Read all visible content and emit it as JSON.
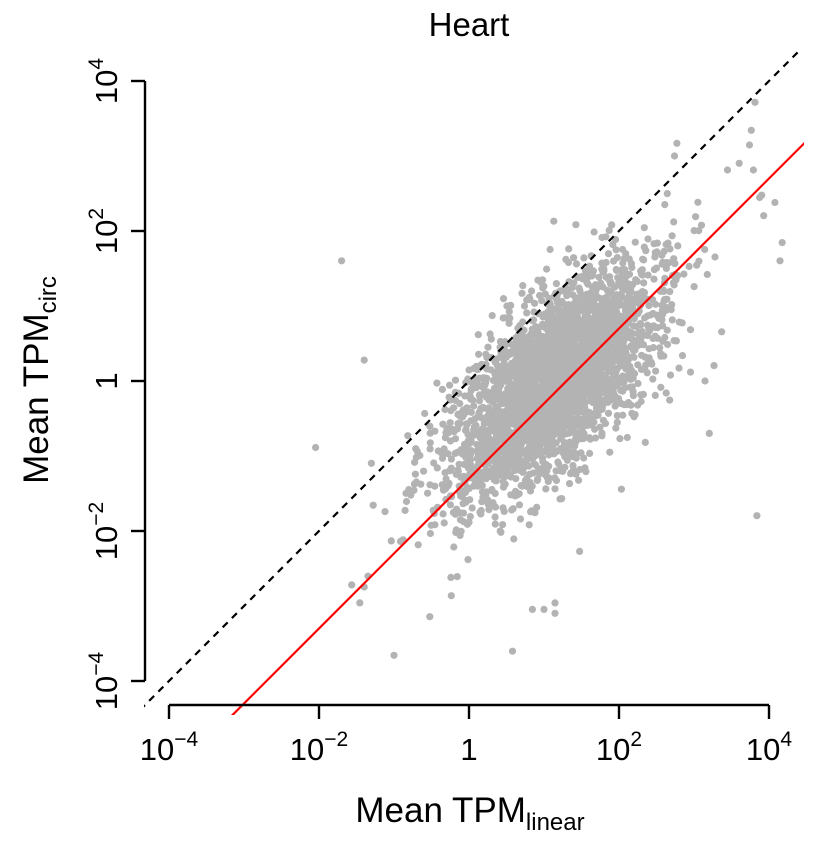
{
  "chart_data": {
    "type": "scatter",
    "title": "Heart",
    "xlabel": {
      "main": "Mean TPM",
      "sub": "linear"
    },
    "ylabel": {
      "main": "Mean TPM",
      "sub": "circ"
    },
    "scale": "log10",
    "xlim": [
      0.0001,
      10000
    ],
    "ylim": [
      0.0001,
      10000
    ],
    "x_ticks": [
      {
        "value": 0.0001,
        "base": "10",
        "exp": "−4"
      },
      {
        "value": 0.01,
        "base": "10",
        "exp": "−2"
      },
      {
        "value": 1,
        "base": "1",
        "exp": ""
      },
      {
        "value": 100,
        "base": "10",
        "exp": "2"
      },
      {
        "value": 10000,
        "base": "10",
        "exp": "4"
      }
    ],
    "y_ticks": [
      {
        "value": 0.0001,
        "base": "10",
        "exp": "−4"
      },
      {
        "value": 0.01,
        "base": "10",
        "exp": "−2"
      },
      {
        "value": 1,
        "base": "1",
        "exp": ""
      },
      {
        "value": 100,
        "base": "10",
        "exp": "2"
      },
      {
        "value": 10000,
        "base": "10",
        "exp": "4"
      }
    ],
    "points_color": "#b3b3b3",
    "reference_lines": [
      {
        "kind": "identity",
        "slope": 1,
        "intercept_log10": 0,
        "color": "#000000",
        "dash": true
      },
      {
        "kind": "fit",
        "slope": 1,
        "intercept_log10": -1.3,
        "color": "#ff0000",
        "dash": false
      }
    ],
    "cloud": {
      "n": 3200,
      "center_log10": [
        1.15,
        0.0
      ],
      "sd_major": 0.95,
      "sd_minor": 0.42,
      "angle_deg": 48
    },
    "outliers": [
      {
        "x": 0.02,
        "y": 40
      },
      {
        "x": 0.04,
        "y": 1.9
      },
      {
        "x": 0.009,
        "y": 0.13
      },
      {
        "x": 0.05,
        "y": 0.08
      },
      {
        "x": 0.04,
        "y": 0.0018
      },
      {
        "x": 0.045,
        "y": 0.0025
      },
      {
        "x": 0.035,
        "y": 0.0011
      },
      {
        "x": 0.1,
        "y": 0.00022
      },
      {
        "x": 0.3,
        "y": 0.00072
      },
      {
        "x": 3.8,
        "y": 0.00025
      },
      {
        "x": 7,
        "y": 0.0009
      },
      {
        "x": 10,
        "y": 0.0009
      },
      {
        "x": 14,
        "y": 0.0008
      },
      {
        "x": 14,
        "y": 0.0011
      },
      {
        "x": 1600,
        "y": 0.2
      },
      {
        "x": 1400,
        "y": 1.0
      },
      {
        "x": 6900,
        "y": 0.016
      },
      {
        "x": 6500,
        "y": 5200
      },
      {
        "x": 5800,
        "y": 2200
      },
      {
        "x": 4000,
        "y": 800
      },
      {
        "x": 8000,
        "y": 300
      },
      {
        "x": 12000,
        "y": 240
      },
      {
        "x": 7500,
        "y": 280
      },
      {
        "x": 15000,
        "y": 70
      },
      {
        "x": 14000,
        "y": 40
      },
      {
        "x": 8500,
        "y": 160
      },
      {
        "x": 6200,
        "y": 650
      },
      {
        "x": 5500,
        "y": 1400
      },
      {
        "x": 550,
        "y": 1000
      },
      {
        "x": 2800,
        "y": 650
      },
      {
        "x": 250,
        "y": 5
      },
      {
        "x": 200,
        "y": 2.2
      },
      {
        "x": 5.5,
        "y": 10
      },
      {
        "x": 3.2,
        "y": 10
      },
      {
        "x": 1.0,
        "y": 1.4
      },
      {
        "x": 0.3,
        "y": 0.25
      }
    ]
  }
}
